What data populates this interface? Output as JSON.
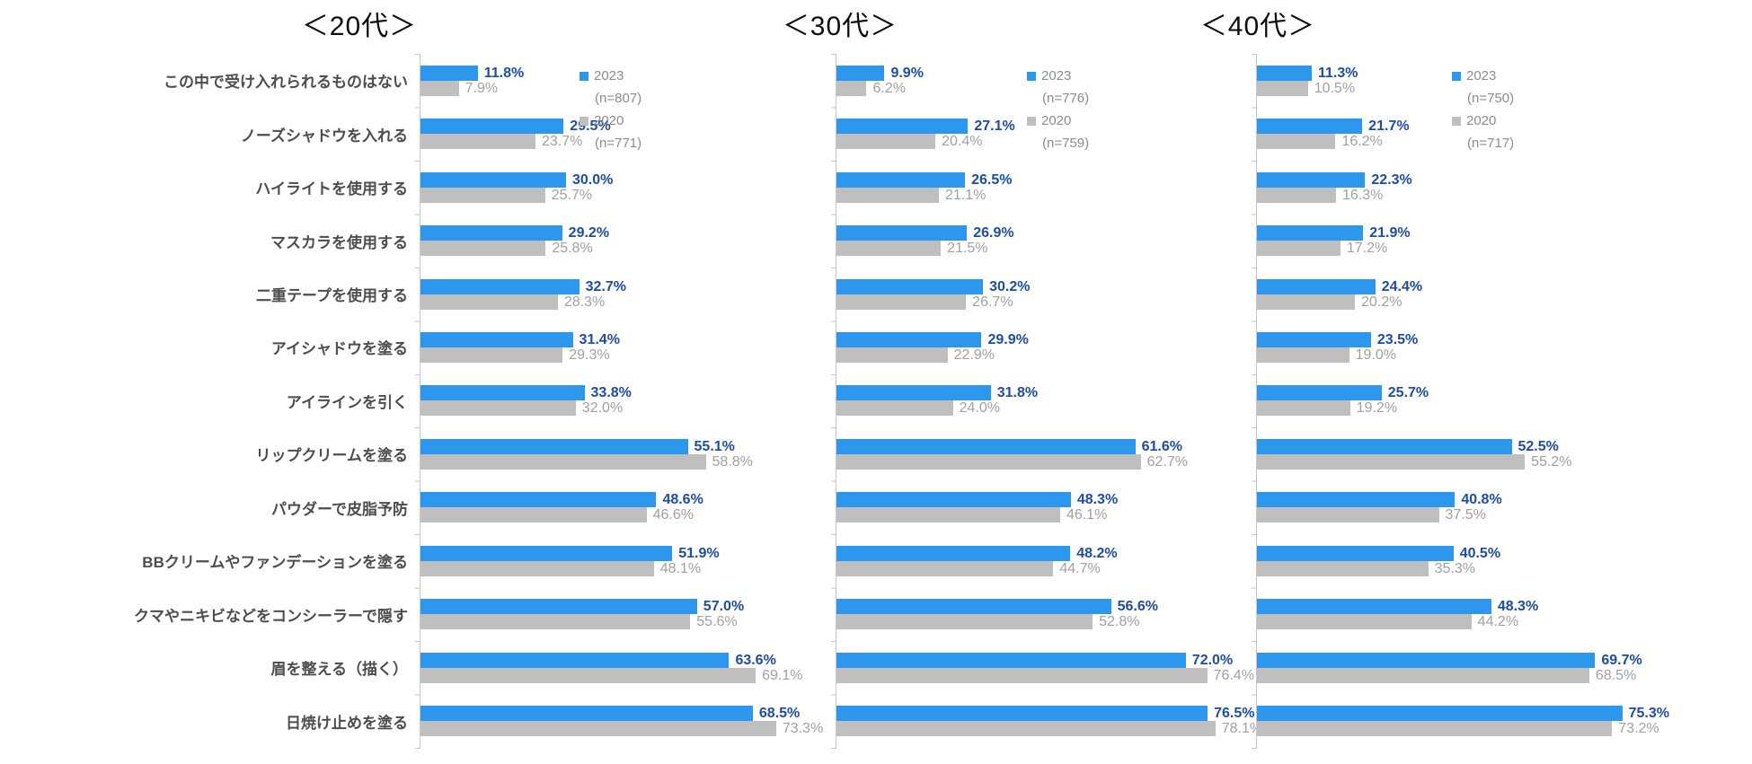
{
  "chart_data": {
    "type": "bar",
    "orientation": "horizontal",
    "value_suffix": "%",
    "xlim": [
      0,
      100
    ],
    "grid": false,
    "legend_position": "top-right-inside",
    "categories": [
      "この中で受け入れられるものはない",
      "ノーズシャドウを入れる",
      "ハイライトを使用する",
      "マスカラを使用する",
      "二重テープを使用する",
      "アイシャドウを塗る",
      "アイラインを引く",
      "リップクリームを塗る",
      "パウダーで皮脂予防",
      "BBクリームやファンデーションを塗る",
      "クマやニキビなどをコンシーラーで隠す",
      "眉を整える（描く）",
      "日焼け止めを塗る"
    ],
    "panels": [
      {
        "title": "＜20代＞",
        "series": [
          {
            "name": "2023",
            "n": "(n=807)",
            "values": [
              11.8,
              29.5,
              30.0,
              29.2,
              32.7,
              31.4,
              33.8,
              55.1,
              48.6,
              51.9,
              57.0,
              63.6,
              68.5
            ]
          },
          {
            "name": "2020",
            "n": "(n=771)",
            "values": [
              7.9,
              23.7,
              25.7,
              25.8,
              28.3,
              29.3,
              32.0,
              58.8,
              46.6,
              48.1,
              55.6,
              69.1,
              73.3
            ]
          }
        ]
      },
      {
        "title": "＜30代＞",
        "series": [
          {
            "name": "2023",
            "n": "(n=776)",
            "values": [
              9.9,
              27.1,
              26.5,
              26.9,
              30.2,
              29.9,
              31.8,
              61.6,
              48.3,
              48.2,
              56.6,
              72.0,
              76.5
            ]
          },
          {
            "name": "2020",
            "n": "(n=759)",
            "values": [
              6.2,
              20.4,
              21.1,
              21.5,
              26.7,
              22.9,
              24.0,
              62.7,
              46.1,
              44.7,
              52.8,
              76.4,
              78.1
            ]
          }
        ]
      },
      {
        "title": "＜40代＞",
        "series": [
          {
            "name": "2023",
            "n": "(n=750)",
            "values": [
              11.3,
              21.7,
              22.3,
              21.9,
              24.4,
              23.5,
              25.7,
              52.5,
              40.8,
              40.5,
              48.3,
              69.7,
              75.3
            ]
          },
          {
            "name": "2020",
            "n": "(n=717)",
            "values": [
              10.5,
              16.2,
              16.3,
              17.2,
              20.2,
              19.0,
              19.2,
              55.2,
              37.5,
              35.3,
              44.2,
              68.5,
              73.2
            ]
          }
        ]
      }
    ],
    "colors": {
      "bar_2023": "#2d97ed",
      "bar_2020": "#bfbfbf",
      "label_2023": "#1e4da3",
      "label_2020": "#a0a0a0",
      "axis": "#c6c6c6"
    }
  }
}
